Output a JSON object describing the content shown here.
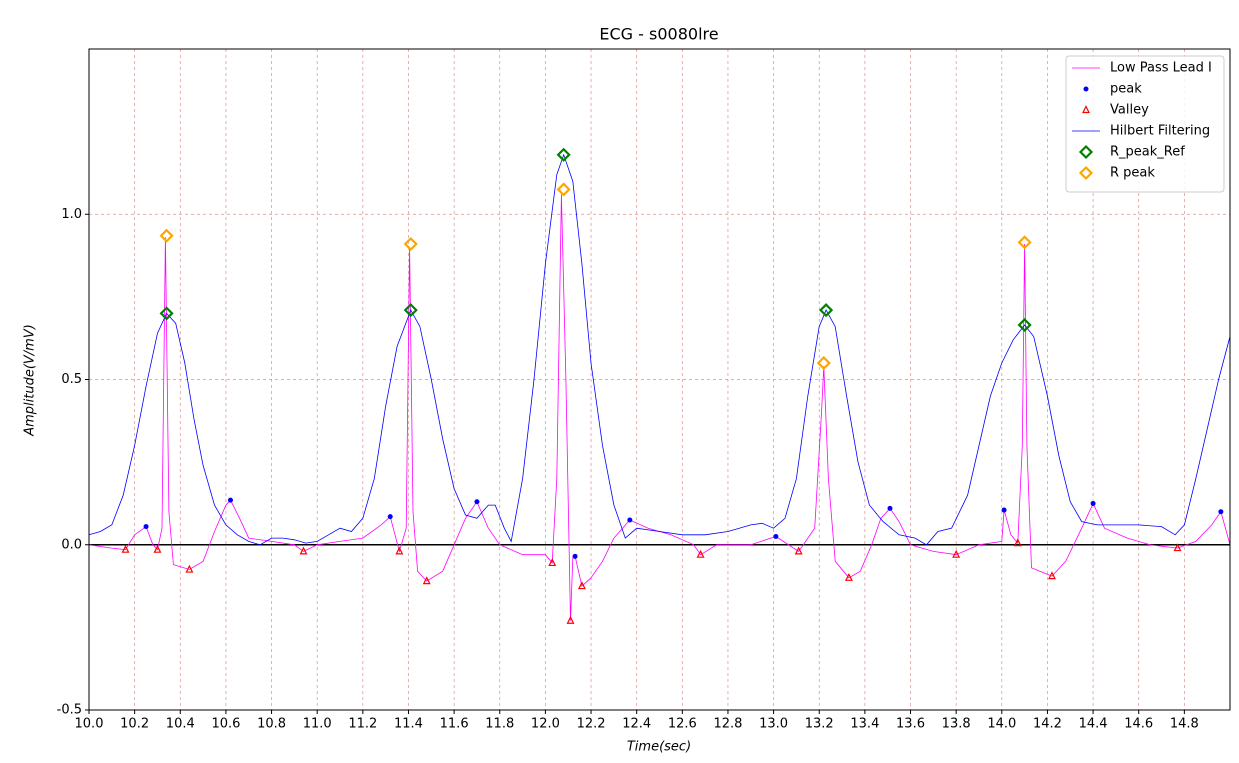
{
  "chart_data": {
    "type": "line",
    "title": "ECG - s0080lre",
    "xlabel": "Time(sec)",
    "ylabel": "Amplitude(V/mV)",
    "xlim": [
      10,
      15
    ],
    "ylim": [
      -0.5,
      1.5
    ],
    "grid": true,
    "legend": "upper right",
    "hline": 0,
    "xticks": [
      {
        "value": 10,
        "label": "10.0"
      },
      10.2,
      10.4,
      10.6,
      10.8,
      {
        "value": 11,
        "label": "11.0"
      },
      11.2,
      11.4,
      11.6,
      11.8,
      {
        "value": 12,
        "label": "12.0"
      },
      12.2,
      12.4,
      12.6,
      12.8,
      {
        "value": 13,
        "label": "13.0"
      },
      13.2,
      13.4,
      13.6,
      13.8,
      {
        "value": 14,
        "label": "14.0"
      },
      14.2,
      14.4,
      14.6,
      14.8
    ],
    "yticks": [
      -0.5,
      {
        "value": 0,
        "label": "0.0"
      },
      0.5,
      {
        "value": 1,
        "label": "1.0"
      }
    ],
    "series": [
      {
        "name": "Low Pass Lead I",
        "color": "#ff00ff",
        "style": "line",
        "x": [
          10.0,
          10.1,
          10.16,
          10.2,
          10.25,
          10.28,
          10.3,
          10.32,
          10.335,
          10.35,
          10.37,
          10.44,
          10.5,
          10.55,
          10.6,
          10.62,
          10.66,
          10.7,
          10.8,
          10.9,
          10.94,
          11.0,
          11.1,
          11.2,
          11.28,
          11.32,
          11.36,
          11.39,
          11.405,
          11.42,
          11.44,
          11.48,
          11.55,
          11.6,
          11.65,
          11.7,
          11.75,
          11.8,
          11.9,
          12.0,
          12.03,
          12.05,
          12.07,
          12.09,
          12.11,
          12.12,
          12.13,
          12.16,
          12.2,
          12.25,
          12.3,
          12.37,
          12.45,
          12.55,
          12.65,
          12.68,
          12.75,
          12.9,
          13.01,
          13.11,
          13.18,
          13.21,
          13.22,
          13.24,
          13.27,
          13.33,
          13.38,
          13.43,
          13.47,
          13.51,
          13.55,
          13.6,
          13.7,
          13.8,
          13.9,
          14.0,
          14.01,
          14.04,
          14.07,
          14.09,
          14.1,
          14.11,
          14.13,
          14.22,
          14.28,
          14.35,
          14.4,
          14.45,
          14.55,
          14.65,
          14.77,
          14.85,
          14.92,
          14.96,
          15.0
        ],
        "values": [
          0,
          -0.01,
          -0.015,
          0.03,
          0.055,
          0,
          -0.015,
          0.05,
          0.93,
          0.1,
          -0.06,
          -0.075,
          -0.05,
          0.04,
          0.12,
          0.135,
          0.08,
          0.02,
          0.01,
          0,
          -0.02,
          0,
          0.01,
          0.02,
          0.06,
          0.085,
          -0.02,
          0.05,
          0.9,
          0.1,
          -0.08,
          -0.11,
          -0.08,
          0,
          0.08,
          0.13,
          0.05,
          0,
          -0.03,
          -0.03,
          -0.055,
          0.2,
          1.06,
          0.5,
          -0.23,
          -0.04,
          -0.035,
          -0.125,
          -0.1,
          -0.05,
          0.02,
          0.075,
          0.05,
          0.03,
          0,
          -0.03,
          0,
          0,
          0.025,
          -0.02,
          0.05,
          0.4,
          0.54,
          0.2,
          -0.05,
          -0.1,
          -0.08,
          0,
          0.08,
          0.11,
          0.07,
          0,
          -0.02,
          -0.03,
          0,
          0.01,
          0.105,
          0.03,
          0.005,
          0.3,
          0.91,
          0.3,
          -0.07,
          -0.095,
          -0.05,
          0.05,
          0.125,
          0.05,
          0.02,
          0,
          -0.01,
          0.01,
          0.06,
          0.1,
          0
        ]
      },
      {
        "name": "peak",
        "color": "#0000ff",
        "style": "dot",
        "x": [
          10.25,
          10.62,
          11.32,
          11.7,
          12.13,
          12.37,
          13.01,
          13.51,
          14.01,
          14.4,
          14.96
        ],
        "values": [
          0.055,
          0.135,
          0.085,
          0.13,
          -0.035,
          0.075,
          0.025,
          0.11,
          0.105,
          0.125,
          0.1
        ]
      },
      {
        "name": "Valley",
        "color": "#ff0000",
        "style": "triangle",
        "x": [
          10.16,
          10.3,
          10.44,
          10.94,
          11.36,
          11.48,
          12.03,
          12.11,
          12.16,
          12.68,
          13.11,
          13.33,
          13.8,
          14.07,
          14.22,
          14.77
        ],
        "values": [
          -0.015,
          -0.015,
          -0.075,
          -0.02,
          -0.02,
          -0.11,
          -0.055,
          -0.23,
          -0.125,
          -0.03,
          -0.02,
          -0.1,
          -0.03,
          0.005,
          -0.095,
          -0.01
        ]
      },
      {
        "name": "Hilbert Filtering",
        "color": "#0000ff",
        "style": "line",
        "x": [
          10.0,
          10.05,
          10.1,
          10.15,
          10.2,
          10.25,
          10.3,
          10.34,
          10.38,
          10.42,
          10.46,
          10.5,
          10.55,
          10.6,
          10.65,
          10.7,
          10.75,
          10.8,
          10.85,
          10.9,
          10.95,
          11.0,
          11.05,
          11.1,
          11.15,
          11.2,
          11.25,
          11.3,
          11.35,
          11.41,
          11.45,
          11.5,
          11.55,
          11.6,
          11.65,
          11.7,
          11.75,
          11.78,
          11.82,
          11.85,
          11.9,
          11.95,
          12.0,
          12.05,
          12.08,
          12.12,
          12.16,
          12.2,
          12.25,
          12.3,
          12.35,
          12.4,
          12.5,
          12.6,
          12.7,
          12.8,
          12.9,
          12.95,
          13.0,
          13.05,
          13.1,
          13.15,
          13.2,
          13.23,
          13.27,
          13.32,
          13.37,
          13.42,
          13.48,
          13.55,
          13.62,
          13.67,
          13.72,
          13.78,
          13.85,
          13.9,
          13.95,
          14.0,
          14.05,
          14.1,
          14.14,
          14.2,
          14.25,
          14.3,
          14.35,
          14.42,
          14.5,
          14.6,
          14.7,
          14.76,
          14.8,
          14.85,
          14.9,
          14.95,
          15.0
        ],
        "values": [
          0.03,
          0.04,
          0.06,
          0.15,
          0.3,
          0.48,
          0.64,
          0.7,
          0.67,
          0.55,
          0.38,
          0.24,
          0.12,
          0.06,
          0.03,
          0.01,
          0,
          0.02,
          0.02,
          0.015,
          0.005,
          0.01,
          0.03,
          0.05,
          0.04,
          0.08,
          0.2,
          0.42,
          0.6,
          0.71,
          0.66,
          0.5,
          0.32,
          0.17,
          0.09,
          0.08,
          0.12,
          0.12,
          0.05,
          0.01,
          0.2,
          0.5,
          0.85,
          1.12,
          1.18,
          1.1,
          0.85,
          0.55,
          0.3,
          0.12,
          0.02,
          0.05,
          0.04,
          0.03,
          0.03,
          0.04,
          0.06,
          0.065,
          0.05,
          0.08,
          0.2,
          0.45,
          0.66,
          0.71,
          0.66,
          0.45,
          0.25,
          0.12,
          0.07,
          0.03,
          0.02,
          0,
          0.04,
          0.05,
          0.15,
          0.3,
          0.45,
          0.55,
          0.62,
          0.665,
          0.63,
          0.45,
          0.27,
          0.13,
          0.07,
          0.06,
          0.06,
          0.06,
          0.055,
          0.03,
          0.06,
          0.2,
          0.35,
          0.5,
          0.63
        ]
      },
      {
        "name": "R_peak_Ref",
        "color": "#008000",
        "style": "diamond",
        "x": [
          10.34,
          11.41,
          12.08,
          13.23,
          14.1
        ],
        "values": [
          0.7,
          0.71,
          1.18,
          0.71,
          0.665
        ]
      },
      {
        "name": "R peak",
        "color": "#ffa500",
        "style": "diamond",
        "x": [
          10.34,
          11.41,
          12.08,
          13.22,
          14.1
        ],
        "values": [
          0.935,
          0.91,
          1.075,
          0.55,
          0.915
        ]
      }
    ]
  }
}
